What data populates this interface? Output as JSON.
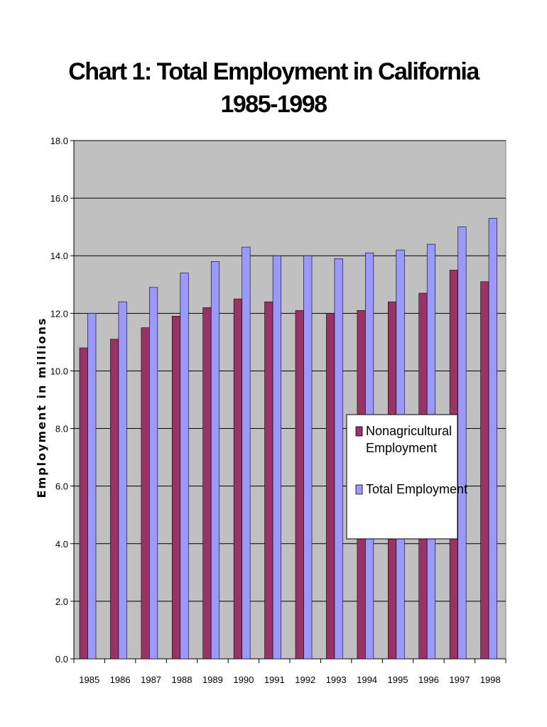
{
  "chart_data": {
    "type": "bar",
    "title": "Chart 1: Total Employment in California",
    "subtitle": "1985-1998",
    "xlabel": "",
    "ylabel": "Employment in millions",
    "ylim": [
      0,
      18
    ],
    "yticks": [
      "0.0",
      "2.0",
      "4.0",
      "6.0",
      "8.0",
      "10.0",
      "12.0",
      "14.0",
      "16.0",
      "18.0"
    ],
    "grid": true,
    "legend_position": "center-right",
    "categories": [
      "1985",
      "1986",
      "1987",
      "1988",
      "1989",
      "1990",
      "1991",
      "1992",
      "1993",
      "1994",
      "1995",
      "1996",
      "1997",
      "1998"
    ],
    "series": [
      {
        "name": "Nonagricultural Employment",
        "legend_lines": [
          "Nonagricultural",
          "Employment"
        ],
        "color": "#993366",
        "values": [
          10.8,
          11.1,
          11.5,
          11.9,
          12.2,
          12.5,
          12.4,
          12.1,
          12.0,
          12.1,
          12.4,
          12.7,
          13.5,
          13.1
        ]
      },
      {
        "name": "Total Employment",
        "legend_lines": [
          "Total Employment"
        ],
        "color": "#9999FF",
        "values": [
          12.0,
          12.4,
          12.9,
          13.4,
          13.8,
          14.3,
          14.0,
          14.0,
          13.9,
          14.1,
          14.2,
          14.4,
          15.0,
          15.3
        ]
      }
    ],
    "plot_background": "#C0C0C0"
  }
}
